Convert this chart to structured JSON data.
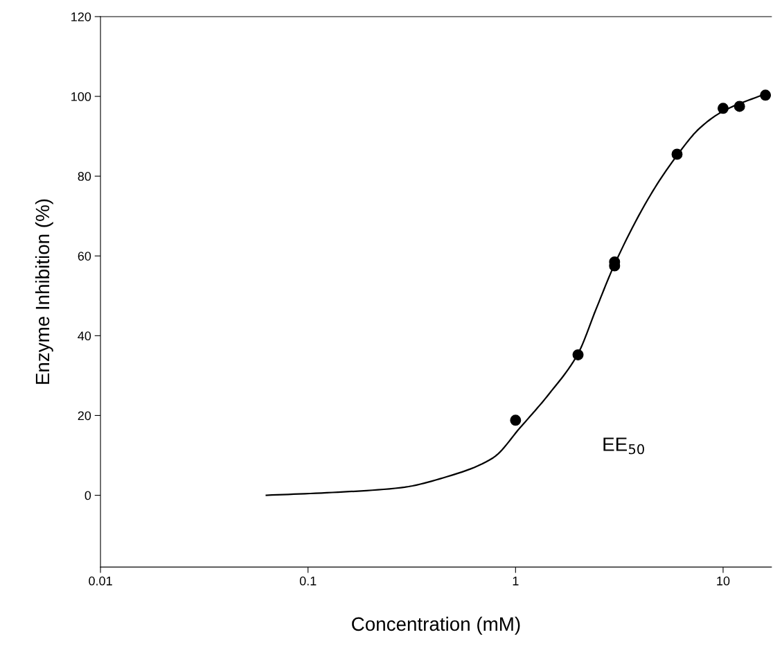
{
  "chart_data": {
    "type": "scatter",
    "xlabel": "Concentration (mM)",
    "ylabel": "Enzyme Inhibition (%)",
    "log": "x",
    "xlim": [
      0.01,
      17.1
    ],
    "ylim": [
      -18,
      120
    ],
    "xticks": [
      0.01,
      0.1,
      1,
      10
    ],
    "yticks": [
      0,
      20,
      40,
      60,
      80,
      100,
      120
    ],
    "grid": false,
    "marker": "circle",
    "annotations": [
      "EE$_{50}$"
    ],
    "series": [
      {
        "color": "#000000",
        "x": [
          1,
          2,
          3,
          3,
          6,
          10,
          12,
          16
        ],
        "values": [
          18.8,
          35.2,
          57.5,
          58.5,
          85.5,
          97,
          97.5,
          100.3
        ]
      },
      {
        "type": "line",
        "color": "#000000",
        "marker": "none",
        "line_style": "solid",
        "x": [
          0.063,
          0.131,
          0.28,
          0.47,
          0.78,
          1.05,
          1.46,
          2.0,
          2.44,
          3.0,
          4.47,
          6.0,
          7.7,
          10.0,
          16.1
        ],
        "values": [
          0,
          0.7,
          1.9,
          4.7,
          9.4,
          16.9,
          25.6,
          35.5,
          46.6,
          57.9,
          75.3,
          85.2,
          92,
          96.3,
          100.7
        ]
      }
    ]
  }
}
